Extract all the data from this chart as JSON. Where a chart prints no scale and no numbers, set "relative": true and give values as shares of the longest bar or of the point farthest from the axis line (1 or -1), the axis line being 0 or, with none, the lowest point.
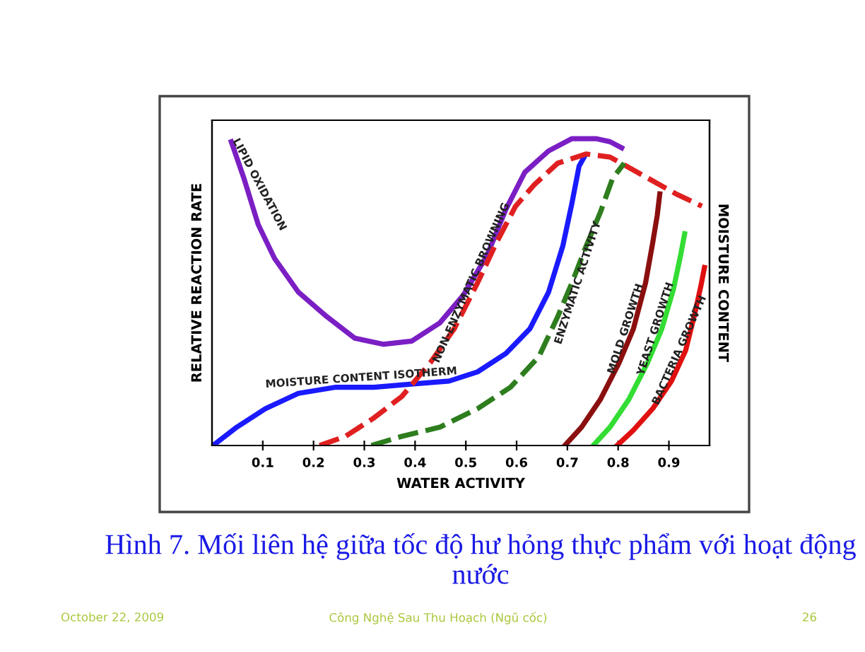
{
  "chart_data": {
    "type": "line",
    "relative": true,
    "xlabel": "WATER ACTIVITY",
    "ylabel": "RELATIVE REACTION RATE",
    "y2label": "MOISTURE CONTENT",
    "xlim": [
      0,
      0.98
    ],
    "xticks": [
      0.1,
      0.2,
      0.3,
      0.4,
      0.5,
      0.6,
      0.7,
      0.8,
      0.9
    ],
    "grid": false,
    "legend": false,
    "series": [
      {
        "name": "LIPID OXIDATION",
        "color": "#7b1fc4",
        "line_style": "solid",
        "x": [
          0.038,
          0.063,
          0.091,
          0.123,
          0.17,
          0.226,
          0.281,
          0.337,
          0.393,
          0.449,
          0.495,
          0.542,
          0.579,
          0.616,
          0.663,
          0.709,
          0.756,
          0.784,
          0.807
        ],
        "values": [
          0.99,
          0.87,
          0.72,
          0.61,
          0.5,
          0.42,
          0.35,
          0.33,
          0.34,
          0.4,
          0.49,
          0.62,
          0.77,
          0.89,
          0.96,
          1.0,
          1.0,
          0.99,
          0.97
        ]
      },
      {
        "name": "MOISTURE CONTENT ISOTHERM",
        "color": "#1a1aff",
        "line_style": "solid",
        "x": [
          0.002,
          0.049,
          0.105,
          0.17,
          0.244,
          0.319,
          0.393,
          0.467,
          0.523,
          0.579,
          0.626,
          0.663,
          0.691,
          0.709,
          0.723,
          0.733
        ],
        "values": [
          0,
          0.06,
          0.12,
          0.17,
          0.19,
          0.19,
          0.2,
          0.21,
          0.24,
          0.3,
          0.38,
          0.5,
          0.65,
          0.79,
          0.91,
          0.94
        ]
      },
      {
        "name": "NON-ENZYMATIC BROWNING",
        "color": "#e02020",
        "line_style": "dashed",
        "x": [
          0.212,
          0.263,
          0.319,
          0.374,
          0.43,
          0.477,
          0.523,
          0.56,
          0.598,
          0.635,
          0.681,
          0.737,
          0.784,
          0.849,
          0.914,
          0.965
        ],
        "values": [
          0,
          0.03,
          0.09,
          0.16,
          0.27,
          0.38,
          0.53,
          0.66,
          0.78,
          0.85,
          0.92,
          0.95,
          0.94,
          0.88,
          0.82,
          0.78
        ]
      },
      {
        "name": "ENZYMATIC ACTIVITY",
        "color": "#2e7d1e",
        "line_style": "dashed",
        "x": [
          0.314,
          0.374,
          0.449,
          0.523,
          0.588,
          0.644,
          0.681,
          0.709,
          0.737,
          0.765,
          0.789,
          0.812
        ],
        "values": [
          0,
          0.03,
          0.06,
          0.12,
          0.19,
          0.29,
          0.42,
          0.53,
          0.65,
          0.76,
          0.87,
          0.92
        ]
      },
      {
        "name": "MOLD GROWTH",
        "color": "#8b0f0f",
        "line_style": "solid",
        "x": [
          0.695,
          0.728,
          0.765,
          0.802,
          0.83,
          0.854,
          0.868,
          0.877,
          0.882
        ],
        "values": [
          0,
          0.06,
          0.15,
          0.27,
          0.38,
          0.53,
          0.66,
          0.75,
          0.82
        ]
      },
      {
        "name": "YEAST GROWTH",
        "color": "#33dd33",
        "line_style": "solid",
        "x": [
          0.751,
          0.784,
          0.821,
          0.858,
          0.886,
          0.909,
          0.923,
          0.931
        ],
        "values": [
          0,
          0.06,
          0.15,
          0.27,
          0.38,
          0.51,
          0.62,
          0.69
        ]
      },
      {
        "name": "BACTERIA GROWTH",
        "color": "#e01010",
        "line_style": "solid",
        "x": [
          0.798,
          0.83,
          0.868,
          0.905,
          0.933,
          0.951,
          0.963,
          0.97
        ],
        "values": [
          0,
          0.05,
          0.12,
          0.21,
          0.31,
          0.43,
          0.52,
          0.58
        ]
      }
    ],
    "annotations": [
      "Hình 7. Mối liên hệ giữa tốc độ hư hỏng thực phẩm với hoạt động nước",
      "October 22, 2009",
      "Công Nghệ Sau Thu Hoạch (Ngũ cốc)",
      "26"
    ]
  }
}
